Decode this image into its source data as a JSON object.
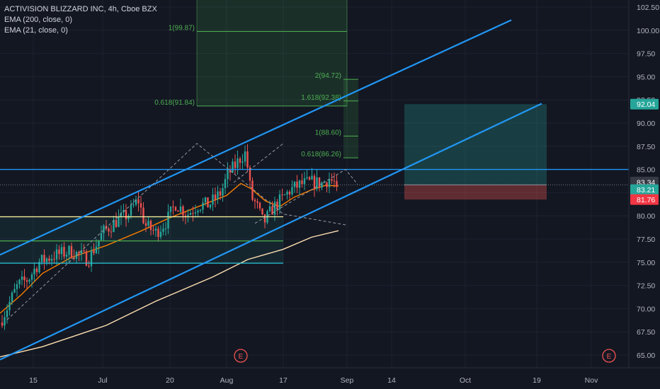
{
  "legend": {
    "title": "ACTIVISION BLIZZARD INC, 4h, Cboe BZX",
    "ema200": "EMA (200, close, 0)",
    "ema21": "EMA (21, close, 0)"
  },
  "colors": {
    "background": "#131722",
    "grid": "#1e2230",
    "axis_text": "#b2b5be",
    "up": "#26a69a",
    "down": "#ef5350",
    "channel": "#2196f3",
    "ema21": "#f57c00",
    "ema200": "#ffe0b2",
    "fib": "#4caf50"
  },
  "chart_data": {
    "type": "candlestick",
    "ylim": [
      63.9,
      103.1
    ],
    "y_ticks": [
      "65.00",
      "67.50",
      "70.00",
      "72.50",
      "75.00",
      "77.50",
      "80.00",
      "82.50",
      "85.00",
      "87.50",
      "90.00",
      "92.50",
      "95.00",
      "97.50",
      "100.00",
      "102.50"
    ],
    "x_ticks": [
      "15",
      "Jul",
      "20",
      "Aug",
      "17",
      "Sep",
      "14",
      "Oct",
      "19",
      "Nov"
    ],
    "price_labels": [
      {
        "label": "92.04",
        "value": 92.04,
        "color": "#26a69a"
      },
      {
        "label": "83.34",
        "value": 83.34,
        "color": "#363a45"
      },
      {
        "label": "83.21",
        "value": 83.21,
        "color": "#26a69a"
      },
      {
        "label": "81.76",
        "value": 81.76,
        "color": "#f23645"
      }
    ],
    "fib_levels": [
      {
        "label": "1(99.87)",
        "value": 99.87
      },
      {
        "label": "2(94.72)",
        "value": 94.72
      },
      {
        "label": "1.618(92.38)",
        "value": 92.38
      },
      {
        "label": "0.618(91.84)",
        "value": 91.84
      },
      {
        "label": "1(88.60)",
        "value": 88.6
      },
      {
        "label": "0.618(86.26)",
        "value": 86.26
      }
    ],
    "earnings_markers": [
      {
        "label": "E"
      },
      {
        "label": "E"
      }
    ],
    "horizontal_levels": {
      "resistance": 85.0,
      "yellow": 79.9,
      "green": 77.3,
      "cyan": 74.9
    },
    "position": {
      "target": 92.04,
      "entry": 83.34,
      "stop": 81.76
    },
    "channel_lines": [
      {
        "from": [
          0,
          75.8
        ],
        "to": [
          722,
          101.1
        ]
      },
      {
        "from": [
          0,
          64.5
        ],
        "to": [
          765,
          92.1
        ]
      }
    ],
    "ema200": [
      [
        0,
        64.8
      ],
      [
        60,
        65.9
      ],
      [
        150,
        68.2
      ],
      [
        220,
        70.8
      ],
      [
        300,
        73.4
      ],
      [
        350,
        75.3
      ],
      [
        400,
        76.4
      ],
      [
        440,
        77.7
      ],
      [
        478,
        78.4
      ]
    ],
    "ema21": [
      [
        0,
        69.5
      ],
      [
        30,
        71.5
      ],
      [
        60,
        73.8
      ],
      [
        100,
        75.5
      ],
      [
        150,
        76.8
      ],
      [
        200,
        78.4
      ],
      [
        240,
        79.8
      ],
      [
        280,
        81.0
      ],
      [
        320,
        82.2
      ],
      [
        340,
        83.5
      ],
      [
        355,
        82.9
      ],
      [
        375,
        81.6
      ],
      [
        395,
        81.0
      ],
      [
        415,
        82.0
      ],
      [
        440,
        82.8
      ],
      [
        460,
        83.3
      ],
      [
        478,
        83.2
      ]
    ],
    "candle_path": [
      [
        0,
        68.5
      ],
      [
        25,
        72.5
      ],
      [
        40,
        73.2
      ],
      [
        55,
        75.0
      ],
      [
        75,
        75.7
      ],
      [
        100,
        76.2
      ],
      [
        125,
        75.3
      ],
      [
        145,
        78.2
      ],
      [
        165,
        79.5
      ],
      [
        182,
        80.2
      ],
      [
        195,
        81.8
      ],
      [
        205,
        79.0
      ],
      [
        220,
        78.2
      ],
      [
        235,
        79.4
      ],
      [
        248,
        81.3
      ],
      [
        265,
        80.2
      ],
      [
        280,
        81.2
      ],
      [
        295,
        81.2
      ],
      [
        312,
        82.5
      ],
      [
        322,
        84.5
      ],
      [
        332,
        85.4
      ],
      [
        340,
        86.3
      ],
      [
        347,
        86.8
      ],
      [
        355,
        82.0
      ],
      [
        362,
        81.2
      ],
      [
        372,
        79.2
      ],
      [
        385,
        80.8
      ],
      [
        398,
        81.8
      ],
      [
        410,
        82.8
      ],
      [
        425,
        83.4
      ],
      [
        440,
        83.6
      ],
      [
        455,
        83.5
      ],
      [
        465,
        84.0
      ],
      [
        478,
        83.21
      ]
    ]
  }
}
